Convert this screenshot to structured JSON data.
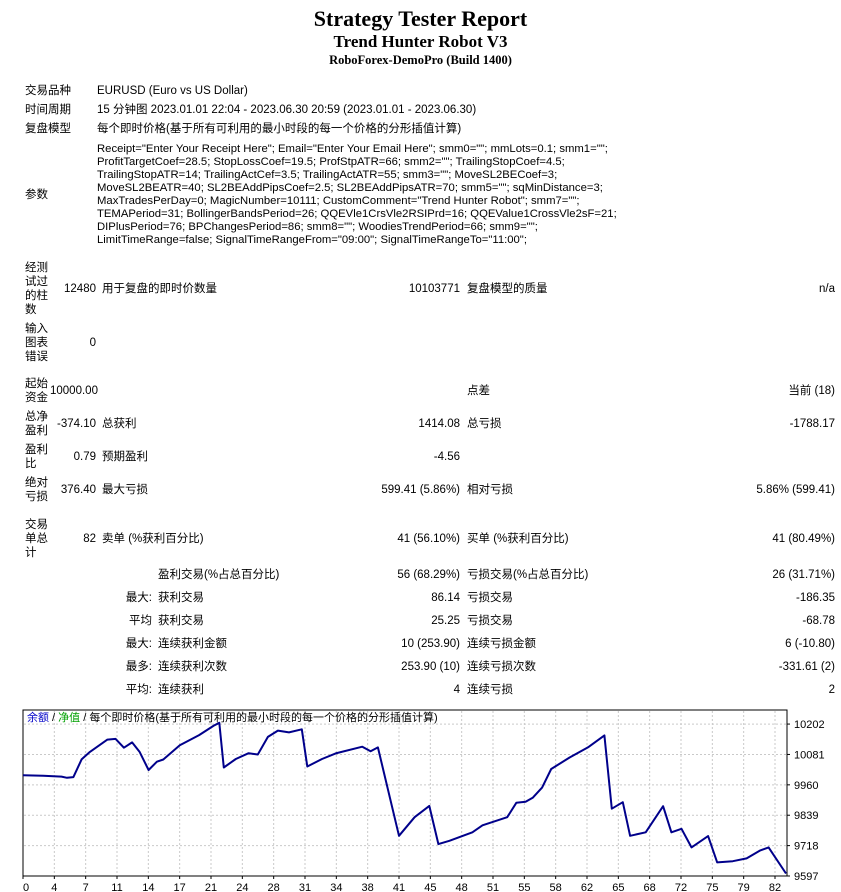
{
  "header": {
    "title": "Strategy Tester Report",
    "subtitle": "Trend Hunter Robot V3",
    "server": "RoboForex-DemoPro (Build 1400)"
  },
  "info_rows": [
    {
      "label": "交易品种",
      "value": "EURUSD (Euro vs US Dollar)"
    },
    {
      "label": "时间周期",
      "value": "15 分钟图 2023.01.01 22:04 - 2023.06.30 20:59 (2023.01.01 - 2023.06.30)"
    },
    {
      "label": "复盘模型",
      "value": "每个即时价格(基于所有可利用的最小时段的每一个价格的分形插值计算)"
    },
    {
      "label": "参数",
      "value": "Receipt=\"Enter Your Receipt Here\"; Email=\"Enter Your Email Here\"; smm0=\"\"; mmLots=0.1; smm1=\"\"; ProfitTargetCoef=28.5; StopLossCoef=19.5; ProfStpATR=66; smm2=\"\"; TrailingStopCoef=4.5; TrailingStopATR=14; TrailingActCef=3.5; TrailingActATR=55; smm3=\"\"; MoveSL2BECoef=3; MoveSL2BEATR=40; SL2BEAddPipsCoef=2.5; SL2BEAddPipsATR=70; smm5=\"\"; sqMinDistance=3; MaxTradesPerDay=0; MagicNumber=10111; CustomComment=\"Trend Hunter Robot\"; smm7=\"\"; TEMAPeriod=31; BollingerBandsPeriod=26; QQEVle1CrsVle2RSIPrd=16; QQEValue1CrossVle2sF=21; DIPlusPeriod=76; BPChangesPeriod=86; smm8=\"\"; WoodiesTrendPeriod=66; smm9=\"\"; LimitTimeRange=false; SignalTimeRangeFrom=\"09:00\"; SignalTimeRangeTo=\"11:00\";"
    }
  ],
  "stat_rows": [
    {
      "label": "经测试过的柱数",
      "v1": "12480",
      "d1": "用于复盘的即时价数量",
      "v2": "10103771",
      "d2": "复盘模型的质量",
      "v3": "n/a"
    },
    {
      "label": "输入图表错误",
      "v1": "0",
      "d1": "",
      "v2": "",
      "d2": "",
      "v3": ""
    },
    {
      "label": "起始资金",
      "v1": "10000.00",
      "d1": "",
      "v2": "",
      "d2": "点差",
      "v3": "当前 (18)"
    },
    {
      "label": "总净盈利",
      "v1": "-374.10",
      "d1": "总获利",
      "v2": "1414.08",
      "d2": "总亏损",
      "v3": "-1788.17"
    },
    {
      "label": "盈利比",
      "v1": "0.79",
      "d1": "预期盈利",
      "v2": "-4.56",
      "d2": "",
      "v3": ""
    },
    {
      "label": "绝对亏损",
      "v1": "376.40",
      "d1": "最大亏损",
      "v2": "599.41 (5.86%)",
      "d2": "相对亏损",
      "v3": "5.86% (599.41)"
    },
    {
      "label": "交易单总计",
      "v1": "82",
      "d1": "卖单 (%获利百分比)",
      "v2": "41 (56.10%)",
      "d2": "买单 (%获利百分比)",
      "v3": "41 (80.49%)"
    }
  ],
  "sub_rows": [
    {
      "prefix": "",
      "d1": "盈利交易(%占总百分比)",
      "v2": "56 (68.29%)",
      "d2": "亏损交易(%占总百分比)",
      "v3": "26 (31.71%)"
    },
    {
      "prefix": "最大:",
      "d1": "获利交易",
      "v2": "86.14",
      "d2": "亏损交易",
      "v3": "-186.35"
    },
    {
      "prefix": "平均",
      "d1": "获利交易",
      "v2": "25.25",
      "d2": "亏损交易",
      "v3": "-68.78"
    },
    {
      "prefix": "最大:",
      "d1": "连续获利金额",
      "v2": "10 (253.90)",
      "d2": "连续亏损金额",
      "v3": "6 (-10.80)"
    },
    {
      "prefix": "最多:",
      "d1": "连续获利次数",
      "v2": "253.90 (10)",
      "d2": "连续亏损次数",
      "v3": "-331.61 (2)"
    },
    {
      "prefix": "平均:",
      "d1": "连续获利",
      "v2": "4",
      "d2": "连续亏损",
      "v3": "2"
    }
  ],
  "chart_data": {
    "type": "line",
    "title": "余额 / 净值 / 每个即时价格(基于所有可利用的最小时段的每一个价格的分形插值计算)",
    "legend": [
      {
        "label": "余额",
        "color": "#0000c8"
      },
      {
        "label": "净值",
        "color": "#00a000"
      }
    ],
    "separator": " / ",
    "model_label": "每个即时价格(基于所有可利用的最小时段的每一个价格的分形插值计算)",
    "xlabel": "",
    "ylabel": "",
    "x_ticks": [
      0,
      4,
      7,
      11,
      14,
      17,
      21,
      24,
      28,
      31,
      34,
      38,
      41,
      45,
      48,
      51,
      55,
      58,
      62,
      65,
      68,
      72,
      75,
      79,
      82
    ],
    "y_ticks": [
      10202,
      10081,
      9960,
      9839,
      9718,
      9597
    ],
    "xlim": [
      0,
      83.3
    ],
    "ylim": [
      9597,
      10258
    ],
    "grid": true,
    "series": [
      {
        "name": "余额",
        "color": "#00008b",
        "points": [
          [
            0,
            9998
          ],
          [
            2.2,
            9996
          ],
          [
            4.2,
            9993
          ],
          [
            4.8,
            9988
          ],
          [
            5.5,
            9991
          ],
          [
            6.4,
            10062
          ],
          [
            7.3,
            10091
          ],
          [
            9.2,
            10140
          ],
          [
            10.1,
            10143
          ],
          [
            11,
            10108
          ],
          [
            11.9,
            10129
          ],
          [
            12.7,
            10092
          ],
          [
            13.7,
            10019
          ],
          [
            14.6,
            10052
          ],
          [
            15.3,
            10061
          ],
          [
            17.1,
            10118
          ],
          [
            19.2,
            10158
          ],
          [
            20.8,
            10196
          ],
          [
            21.4,
            10207
          ],
          [
            21.9,
            10029
          ],
          [
            23.2,
            10063
          ],
          [
            24.6,
            10086
          ],
          [
            25.6,
            10081
          ],
          [
            26.7,
            10151
          ],
          [
            27.8,
            10176
          ],
          [
            29,
            10169
          ],
          [
            30.4,
            10181
          ],
          [
            31,
            10033
          ],
          [
            32.6,
            10063
          ],
          [
            34.1,
            10085
          ],
          [
            37,
            10112
          ],
          [
            37.9,
            10094
          ],
          [
            38.7,
            10109
          ],
          [
            41,
            9757
          ],
          [
            42.7,
            9831
          ],
          [
            44.3,
            9876
          ],
          [
            45.3,
            9724
          ],
          [
            46.5,
            9737
          ],
          [
            49,
            9771
          ],
          [
            50.1,
            9799
          ],
          [
            52.8,
            9831
          ],
          [
            53.8,
            9889
          ],
          [
            54.8,
            9893
          ],
          [
            55.6,
            9909
          ],
          [
            56.6,
            9949
          ],
          [
            57.6,
            10023
          ],
          [
            59.6,
            10069
          ],
          [
            61.6,
            10109
          ],
          [
            63.4,
            10157
          ],
          [
            64.2,
            9865
          ],
          [
            65.4,
            9891
          ],
          [
            66.2,
            9757
          ],
          [
            67.9,
            9771
          ],
          [
            69.8,
            9875
          ],
          [
            70.7,
            9771
          ],
          [
            71.8,
            9785
          ],
          [
            72.9,
            9711
          ],
          [
            74.7,
            9756
          ],
          [
            75.7,
            9651
          ],
          [
            77.4,
            9656
          ],
          [
            78.9,
            9667
          ],
          [
            80.4,
            9699
          ],
          [
            81.3,
            9711
          ],
          [
            83.2,
            9607
          ]
        ]
      }
    ]
  }
}
